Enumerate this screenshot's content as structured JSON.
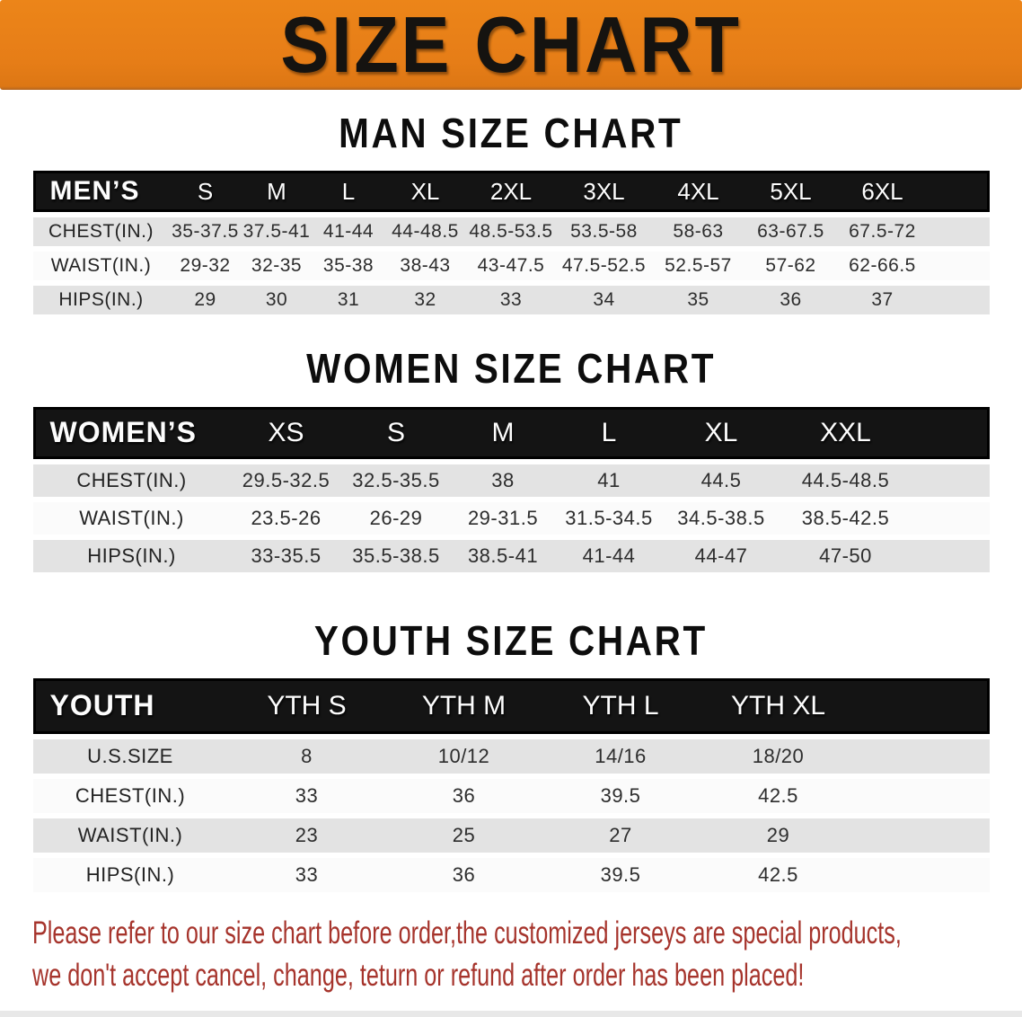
{
  "banner": {
    "title": "SIZE CHART"
  },
  "colors": {
    "banner_orange": "#e67d17",
    "header_black": "#141414",
    "row_gray": "#e3e3e3",
    "footer_red": "#a6342c"
  },
  "chart_data": [
    {
      "type": "table",
      "title": "MAN SIZE CHART",
      "corner_label": "MEN’S",
      "columns": [
        "S",
        "M",
        "L",
        "XL",
        "2XL",
        "3XL",
        "4XL",
        "5XL",
        "6XL"
      ],
      "rows": [
        {
          "label": "CHEST(IN.)",
          "values": [
            "35-37.5",
            "37.5-41",
            "41-44",
            "44-48.5",
            "48.5-53.5",
            "53.5-58",
            "58-63",
            "63-67.5",
            "67.5-72"
          ]
        },
        {
          "label": "WAIST(IN.)",
          "values": [
            "29-32",
            "32-35",
            "35-38",
            "38-43",
            "43-47.5",
            "47.5-52.5",
            "52.5-57",
            "57-62",
            "62-66.5"
          ]
        },
        {
          "label": "HIPS(IN.)",
          "values": [
            "29",
            "30",
            "31",
            "32",
            "33",
            "34",
            "35",
            "36",
            "37"
          ]
        }
      ]
    },
    {
      "type": "table",
      "title": "WOMEN SIZE CHART",
      "corner_label": "WOMEN’S",
      "columns": [
        "XS",
        "S",
        "M",
        "L",
        "XL",
        "XXL"
      ],
      "rows": [
        {
          "label": "CHEST(IN.)",
          "values": [
            "29.5-32.5",
            "32.5-35.5",
            "38",
            "41",
            "44.5",
            "44.5-48.5"
          ]
        },
        {
          "label": "WAIST(IN.)",
          "values": [
            "23.5-26",
            "26-29",
            "29-31.5",
            "31.5-34.5",
            "34.5-38.5",
            "38.5-42.5"
          ]
        },
        {
          "label": "HIPS(IN.)",
          "values": [
            "33-35.5",
            "35.5-38.5",
            "38.5-41",
            "41-44",
            "44-47",
            "47-50"
          ]
        }
      ]
    },
    {
      "type": "table",
      "title": "YOUTH SIZE CHART",
      "corner_label": "YOUTH",
      "columns": [
        "YTH S",
        "YTH M",
        "YTH L",
        "YTH XL"
      ],
      "rows": [
        {
          "label": "U.S.SIZE",
          "values": [
            "8",
            "10/12",
            "14/16",
            "18/20"
          ]
        },
        {
          "label": "CHEST(IN.)",
          "values": [
            "33",
            "36",
            "39.5",
            "42.5"
          ]
        },
        {
          "label": "WAIST(IN.)",
          "values": [
            "23",
            "25",
            "27",
            "29"
          ]
        },
        {
          "label": "HIPS(IN.)",
          "values": [
            "33",
            "36",
            "39.5",
            "42.5"
          ]
        }
      ]
    }
  ],
  "footer": {
    "lines": [
      "Please refer to our size chart before order,the customized jerseys are special products,",
      "we don't accept cancel, change, teturn or refund after order has been placed!"
    ]
  }
}
